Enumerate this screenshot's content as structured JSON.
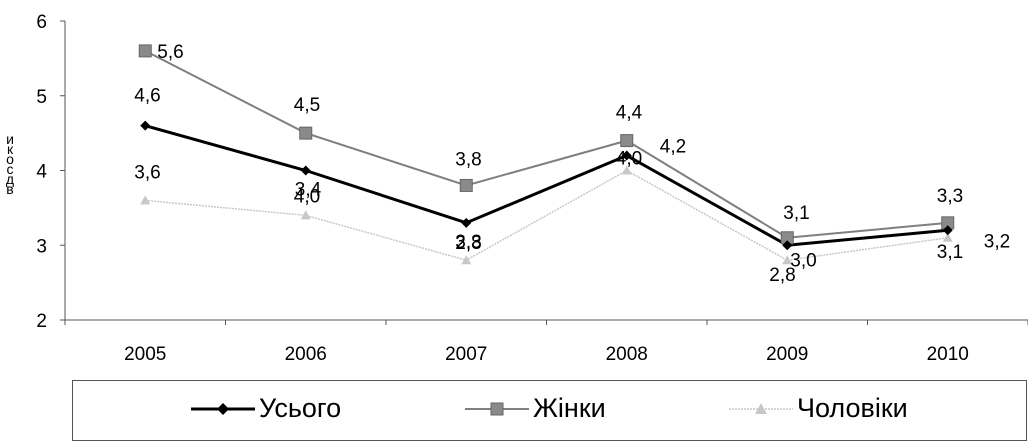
{
  "chart_data": {
    "type": "line",
    "title": "",
    "xlabel": "",
    "ylabel": "икосдв",
    "categories": [
      "2005",
      "2006",
      "2007",
      "2008",
      "2009",
      "2010"
    ],
    "ylim": [
      2,
      6
    ],
    "yticks": [
      "2",
      "3",
      "4",
      "5",
      "6"
    ],
    "grid": false,
    "legend_position": "bottom",
    "series": [
      {
        "name": "Усього",
        "values": [
          4.6,
          4.0,
          3.3,
          4.2,
          3.0,
          3.2
        ],
        "labels": [
          "4,6",
          "4,0",
          "3,3",
          "4,2",
          "3,0",
          "3,2"
        ],
        "color": "#000000",
        "marker": "diamond"
      },
      {
        "name": "Жінки",
        "values": [
          5.6,
          4.5,
          3.8,
          4.4,
          3.1,
          3.3
        ],
        "labels": [
          "5,6",
          "4,5",
          "3,8",
          "4,4",
          "3,1",
          "3,3"
        ],
        "color": "#7f7f7f",
        "marker": "square"
      },
      {
        "name": "Чоловіки",
        "values": [
          3.6,
          3.4,
          2.8,
          4.0,
          2.8,
          3.1
        ],
        "labels": [
          "3,6",
          "3,4",
          "2,8",
          "4,0",
          "2,8",
          "3,1"
        ],
        "color": "#c8c8c8",
        "marker": "triangle"
      }
    ]
  }
}
